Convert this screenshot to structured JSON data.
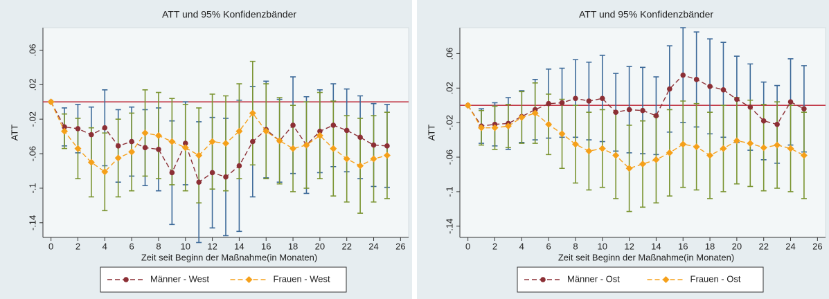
{
  "chart_data": [
    {
      "type": "line",
      "title": "ATT und 95% Konfidenzbänder",
      "ytitle": "ATT",
      "xtitle": "Zeit seit Beginn der Maßnahme(in Monaten)",
      "x": [
        0,
        1,
        2,
        3,
        4,
        5,
        6,
        7,
        8,
        9,
        10,
        11,
        12,
        13,
        14,
        15,
        16,
        17,
        18,
        19,
        20,
        21,
        22,
        23,
        24,
        25
      ],
      "series": [
        {
          "name": "Männer - West",
          "color": "#8c2f35",
          "error_color": "#3d6a99",
          "marker": "circle",
          "values": [
            0,
            -0.029,
            -0.031,
            -0.038,
            -0.03,
            -0.051,
            -0.046,
            -0.053,
            -0.055,
            -0.082,
            -0.048,
            -0.093,
            -0.082,
            -0.087,
            -0.074,
            -0.046,
            -0.032,
            -0.045,
            -0.027,
            -0.05,
            -0.034,
            -0.027,
            -0.033,
            -0.041,
            -0.05,
            -0.051
          ],
          "errors": [
            0,
            0.022,
            0.028,
            0.032,
            0.044,
            0.042,
            0.04,
            0.044,
            0.048,
            0.06,
            0.048,
            0.07,
            0.064,
            0.068,
            0.076,
            0.064,
            0.056,
            0.048,
            0.056,
            0.056,
            0.048,
            0.048,
            0.048,
            0.048,
            0.048,
            0.048
          ]
        },
        {
          "name": "Frauen - West",
          "color": "#f5a01a",
          "error_color": "#7a9431",
          "marker": "diamond",
          "values": [
            0,
            -0.034,
            -0.054,
            -0.07,
            -0.081,
            -0.065,
            -0.058,
            -0.036,
            -0.039,
            -0.046,
            -0.053,
            -0.062,
            -0.046,
            -0.048,
            -0.034,
            -0.013,
            -0.034,
            -0.045,
            -0.054,
            -0.05,
            -0.039,
            -0.054,
            -0.066,
            -0.074,
            -0.066,
            -0.062
          ],
          "errors": [
            0,
            0.02,
            0.035,
            0.04,
            0.045,
            0.045,
            0.045,
            0.05,
            0.05,
            0.05,
            0.05,
            0.055,
            0.055,
            0.055,
            0.055,
            0.06,
            0.055,
            0.05,
            0.05,
            0.05,
            0.05,
            0.055,
            0.05,
            0.055,
            0.05,
            0.05
          ]
        }
      ],
      "xlim": [
        -0.6,
        26.6
      ],
      "xticks": [
        0,
        2,
        4,
        6,
        8,
        10,
        12,
        14,
        16,
        18,
        20,
        22,
        24,
        26
      ],
      "ylim": [
        -0.157,
        0.086
      ],
      "yticks": [
        {
          "value": -0.14,
          "label": "-.14"
        },
        {
          "value": -0.1,
          "label": "-.1"
        },
        {
          "value": -0.06,
          "label": "-.06"
        },
        {
          "value": -0.02,
          "label": "-.02"
        },
        {
          "value": 0.02,
          "label": ".02"
        },
        {
          "value": 0.06,
          "label": ".06"
        }
      ],
      "yline": 0,
      "yline_color": "#c23a48",
      "grid": false,
      "legend": "bottom"
    },
    {
      "type": "line",
      "title": "ATT und 95% Konfidenzbänder",
      "ytitle": "ATT",
      "xtitle": "Zeit seit Beginn der Maßnahme(in Monaten)",
      "x": [
        0,
        1,
        2,
        3,
        4,
        5,
        6,
        7,
        8,
        9,
        10,
        11,
        12,
        13,
        14,
        15,
        16,
        17,
        18,
        19,
        20,
        21,
        22,
        23,
        24,
        25
      ],
      "series": [
        {
          "name": "Männer - Ost",
          "color": "#8c2f35",
          "error_color": "#3d6a99",
          "marker": "circle",
          "values": [
            0,
            -0.024,
            -0.022,
            -0.021,
            -0.013,
            -0.005,
            0.002,
            0.003,
            0.008,
            0.005,
            0.008,
            -0.008,
            -0.005,
            -0.006,
            -0.012,
            0.019,
            0.035,
            0.03,
            0.022,
            0.018,
            0.007,
            -0.002,
            -0.018,
            -0.022,
            0.004,
            -0.004
          ],
          "errors": [
            0,
            0.02,
            0.025,
            0.03,
            0.03,
            0.035,
            0.04,
            0.04,
            0.045,
            0.045,
            0.05,
            0.045,
            0.05,
            0.05,
            0.045,
            0.05,
            0.055,
            0.055,
            0.055,
            0.055,
            0.05,
            0.05,
            0.045,
            0.045,
            0.05,
            0.05
          ]
        },
        {
          "name": "Frauen - Ost",
          "color": "#f5a01a",
          "error_color": "#7a9431",
          "marker": "diamond",
          "values": [
            0,
            -0.026,
            -0.026,
            -0.024,
            -0.014,
            -0.009,
            -0.022,
            -0.033,
            -0.045,
            -0.053,
            -0.05,
            -0.058,
            -0.073,
            -0.068,
            -0.063,
            -0.055,
            -0.045,
            -0.048,
            -0.058,
            -0.05,
            -0.041,
            -0.044,
            -0.049,
            -0.046,
            -0.05,
            -0.058
          ],
          "errors": [
            0,
            0.02,
            0.025,
            0.025,
            0.03,
            0.035,
            0.035,
            0.04,
            0.045,
            0.045,
            0.045,
            0.05,
            0.05,
            0.05,
            0.05,
            0.05,
            0.05,
            0.05,
            0.05,
            0.05,
            0.05,
            0.05,
            0.05,
            0.05,
            0.05,
            0.05
          ]
        }
      ],
      "xlim": [
        -0.6,
        26.6
      ],
      "xticks": [
        0,
        2,
        4,
        6,
        8,
        10,
        12,
        14,
        16,
        18,
        20,
        22,
        24,
        26
      ],
      "ylim": [
        -0.153,
        0.09
      ],
      "yticks": [
        {
          "value": -0.14,
          "label": "-.14"
        },
        {
          "value": -0.1,
          "label": "-.1"
        },
        {
          "value": -0.06,
          "label": "-.06"
        },
        {
          "value": -0.02,
          "label": "-.02"
        },
        {
          "value": 0.02,
          "label": ".02"
        },
        {
          "value": 0.06,
          "label": ".06"
        }
      ],
      "yline": 0,
      "yline_color": "#c23a48",
      "grid": false,
      "legend": "bottom"
    }
  ]
}
